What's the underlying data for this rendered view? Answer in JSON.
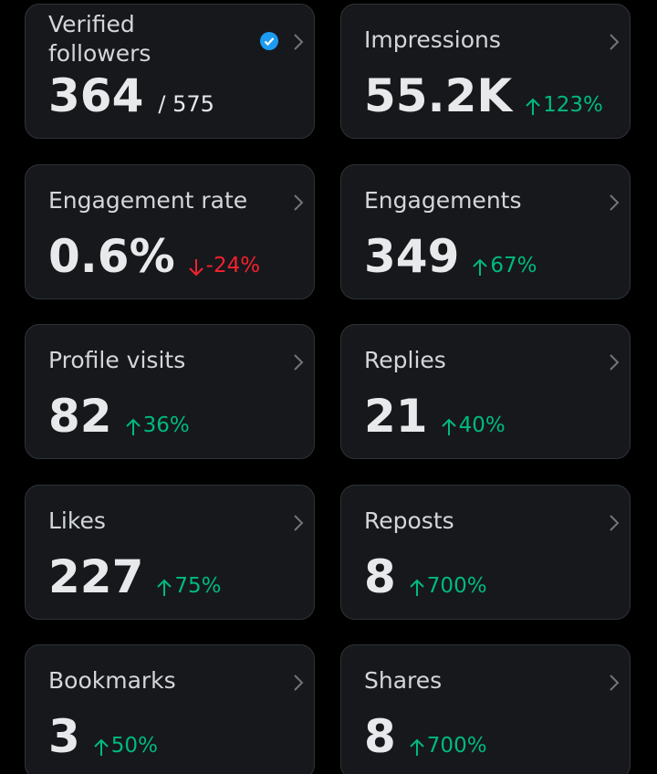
{
  "cards": [
    {
      "label": "Verified followers",
      "value": "364",
      "total": "/ 575",
      "verified": true
    },
    {
      "label": "Impressions",
      "value": "55.2K",
      "change": "123%",
      "direction": "up"
    },
    {
      "label": "Engagement rate",
      "value": "0.6%",
      "change": "-24%",
      "direction": "down"
    },
    {
      "label": "Engagements",
      "value": "349",
      "change": "67%",
      "direction": "up"
    },
    {
      "label": "Profile visits",
      "value": "82",
      "change": "36%",
      "direction": "up"
    },
    {
      "label": "Replies",
      "value": "21",
      "change": "40%",
      "direction": "up"
    },
    {
      "label": "Likes",
      "value": "227",
      "change": "75%",
      "direction": "up"
    },
    {
      "label": "Reposts",
      "value": "8",
      "change": "700%",
      "direction": "up"
    },
    {
      "label": "Bookmarks",
      "value": "3",
      "change": "50%",
      "direction": "up"
    },
    {
      "label": "Shares",
      "value": "8",
      "change": "700%",
      "direction": "up"
    }
  ]
}
